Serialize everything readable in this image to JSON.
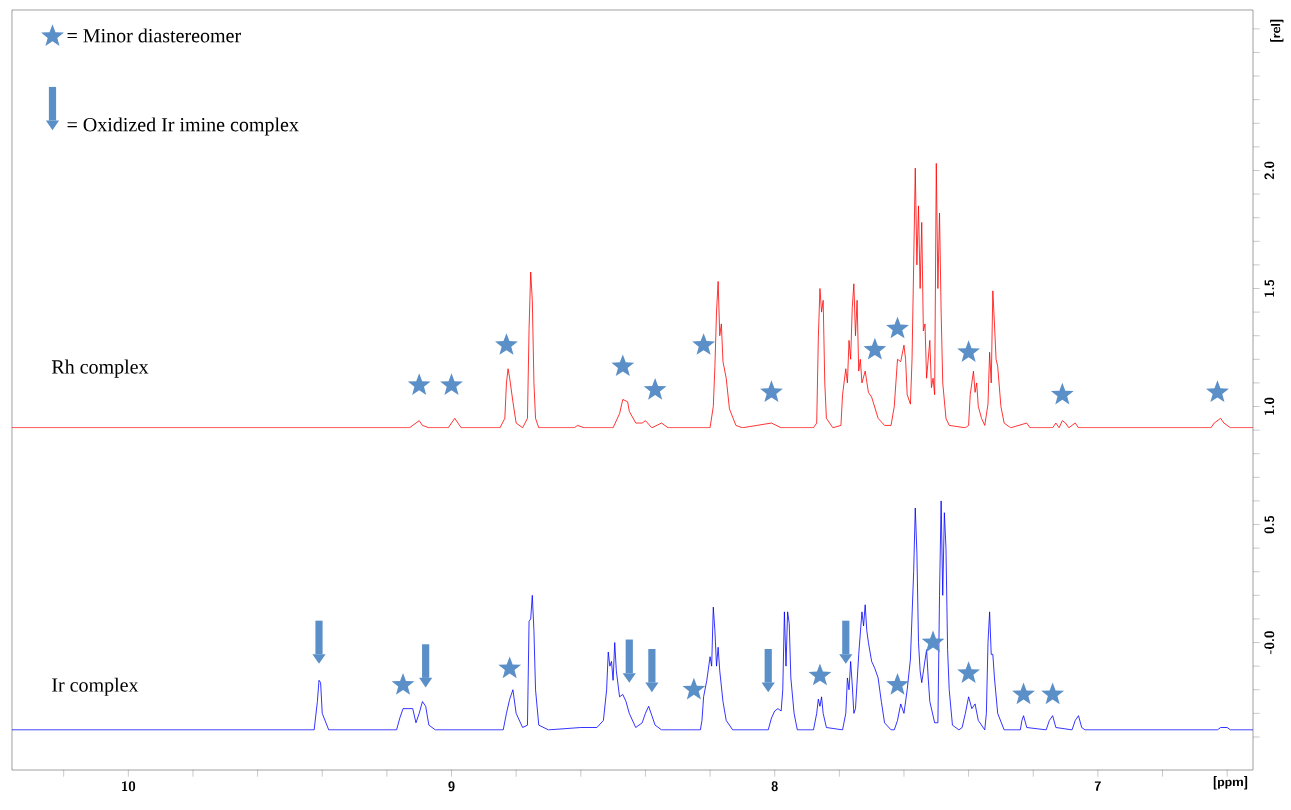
{
  "chart_data": {
    "type": "line",
    "xlabel": "[ppm]",
    "ylabel": "[rel]",
    "xlim": [
      10.36,
      6.52
    ],
    "ylim": [
      -0.54,
      2.68
    ],
    "xticks": [
      {
        "value": 10.2,
        "label": null
      },
      10,
      {
        "value": 9.8,
        "label": null
      },
      {
        "value": 9.6,
        "label": null
      },
      {
        "value": 9.4,
        "label": null
      },
      {
        "value": 9.2,
        "label": null
      },
      9,
      {
        "value": 8.8,
        "label": null
      },
      {
        "value": 8.6,
        "label": null
      },
      {
        "value": 8.4,
        "label": null
      },
      {
        "value": 8.2,
        "label": null
      },
      8,
      {
        "value": 7.8,
        "label": null
      },
      {
        "value": 7.6,
        "label": null
      },
      {
        "value": 7.4,
        "label": null
      },
      {
        "value": 7.2,
        "label": null
      },
      7,
      {
        "value": 6.8,
        "label": null
      },
      {
        "value": 6.6,
        "label": null
      }
    ],
    "yticks": [
      {
        "value": -0.4,
        "label": null
      },
      {
        "value": -0.3,
        "label": null
      },
      {
        "value": -0.2,
        "label": null
      },
      {
        "value": -0.1,
        "label": null
      },
      {
        "value": 0,
        "label": "-0.0"
      },
      {
        "value": 0.1,
        "label": null
      },
      {
        "value": 0.2,
        "label": null
      },
      {
        "value": 0.3,
        "label": null
      },
      {
        "value": 0.4,
        "label": null
      },
      {
        "value": 0.5,
        "label": "0.5"
      },
      {
        "value": 0.6,
        "label": null
      },
      {
        "value": 0.7,
        "label": null
      },
      {
        "value": 0.8,
        "label": null
      },
      {
        "value": 0.9,
        "label": null
      },
      {
        "value": 1,
        "label": "1.0"
      },
      {
        "value": 1.1,
        "label": null
      },
      {
        "value": 1.2,
        "label": null
      },
      {
        "value": 1.3,
        "label": null
      },
      {
        "value": 1.4,
        "label": null
      },
      {
        "value": 1.5,
        "label": "1.5"
      },
      {
        "value": 1.6,
        "label": null
      },
      {
        "value": 1.7,
        "label": null
      },
      {
        "value": 1.8,
        "label": null
      },
      {
        "value": 1.9,
        "label": null
      },
      {
        "value": 2,
        "label": "2.0"
      },
      {
        "value": 2.1,
        "label": null
      },
      {
        "value": 2.2,
        "label": null
      },
      {
        "value": 2.3,
        "label": null
      },
      {
        "value": 2.4,
        "label": null
      },
      {
        "value": 2.5,
        "label": null
      },
      {
        "value": 2.6,
        "label": null
      }
    ],
    "legend": "top left",
    "marker": "none",
    "line_style": "solid",
    "series": [
      {
        "name": "Rh complex",
        "color": "#ff0000",
        "x": [
          10.36,
          9.13,
          9.11,
          9.1,
          9.09,
          9.07,
          9.01,
          8.99,
          8.97,
          8.85,
          8.835,
          8.83,
          8.825,
          8.82,
          8.81,
          8.8,
          8.78,
          8.765,
          8.76,
          8.755,
          8.75,
          8.745,
          8.74,
          8.73,
          8.62,
          8.61,
          8.59,
          8.5,
          8.48,
          8.47,
          8.455,
          8.45,
          8.43,
          8.41,
          8.4,
          8.38,
          8.35,
          8.33,
          8.2,
          8.19,
          8.185,
          8.18,
          8.175,
          8.17,
          8.165,
          8.16,
          8.15,
          8.14,
          8.12,
          8.1,
          8.01,
          7.98,
          7.88,
          7.87,
          7.865,
          7.86,
          7.855,
          7.85,
          7.845,
          7.84,
          7.82,
          7.795,
          7.79,
          7.78,
          7.775,
          7.77,
          7.765,
          7.76,
          7.755,
          7.75,
          7.745,
          7.74,
          7.735,
          7.73,
          7.72,
          7.71,
          7.7,
          7.68,
          7.66,
          7.64,
          7.63,
          7.62,
          7.61,
          7.6,
          7.595,
          7.59,
          7.58,
          7.575,
          7.57,
          7.565,
          7.56,
          7.555,
          7.55,
          7.545,
          7.54,
          7.535,
          7.53,
          7.52,
          7.515,
          7.51,
          7.505,
          7.5,
          7.495,
          7.49,
          7.485,
          7.48,
          7.47,
          7.46,
          7.41,
          7.4,
          7.395,
          7.39,
          7.385,
          7.38,
          7.375,
          7.37,
          7.36,
          7.35,
          7.34,
          7.335,
          7.33,
          7.325,
          7.32,
          7.315,
          7.31,
          7.3,
          7.29,
          7.27,
          7.22,
          7.21,
          7.14,
          7.13,
          7.12,
          7.11,
          7.1,
          7.09,
          7.07,
          7.06,
          6.65,
          6.64,
          6.62,
          6.61,
          6.59,
          6.52
        ],
        "values": [
          0.91,
          0.91,
          0.93,
          0.94,
          0.92,
          0.91,
          0.91,
          0.95,
          0.91,
          0.91,
          0.95,
          1.1,
          1.16,
          1.12,
          1.02,
          0.93,
          0.91,
          0.95,
          1.33,
          1.57,
          1.45,
          1.1,
          0.95,
          0.91,
          0.91,
          0.92,
          0.91,
          0.91,
          0.97,
          1.03,
          1.02,
          0.98,
          0.93,
          0.93,
          0.94,
          0.91,
          0.93,
          0.91,
          0.91,
          1.0,
          1.17,
          1.4,
          1.53,
          1.3,
          1.35,
          1.19,
          1.12,
          0.99,
          0.92,
          0.91,
          0.93,
          0.91,
          0.91,
          0.93,
          1.29,
          1.5,
          1.4,
          1.45,
          1.1,
          0.95,
          0.91,
          0.92,
          1.05,
          1.16,
          1.1,
          1.28,
          1.2,
          1.42,
          1.52,
          1.3,
          1.45,
          1.15,
          1.2,
          1.1,
          1.15,
          1.06,
          1.04,
          0.95,
          0.92,
          0.92,
          1.0,
          1.2,
          1.19,
          1.26,
          1.2,
          1.05,
          1.01,
          1.2,
          1.6,
          2.01,
          1.6,
          1.85,
          1.5,
          1.78,
          1.32,
          1.35,
          1.12,
          1.28,
          1.08,
          1.12,
          1.05,
          2.03,
          1.5,
          1.82,
          1.4,
          1.1,
          0.95,
          0.92,
          0.91,
          0.92,
          1.05,
          1.1,
          1.15,
          1.06,
          1.1,
          1.0,
          0.95,
          0.92,
          1.01,
          1.23,
          1.1,
          1.49,
          1.35,
          1.2,
          1.17,
          1.0,
          0.93,
          0.91,
          0.93,
          0.91,
          0.91,
          0.93,
          0.91,
          0.94,
          0.93,
          0.91,
          0.93,
          0.91,
          0.91,
          0.93,
          0.95,
          0.93,
          0.91,
          0.91
        ]
      },
      {
        "name": "Ir complex",
        "color": "#0000ff",
        "x": [
          10.36,
          9.425,
          9.415,
          9.41,
          9.405,
          9.4,
          9.38,
          9.17,
          9.16,
          9.15,
          9.13,
          9.12,
          9.11,
          9.1,
          9.09,
          9.08,
          9.07,
          9.05,
          8.84,
          8.83,
          8.82,
          8.81,
          8.8,
          8.78,
          8.765,
          8.76,
          8.755,
          8.75,
          8.745,
          8.74,
          8.73,
          8.7,
          8.6,
          8.55,
          8.53,
          8.52,
          8.515,
          8.51,
          8.505,
          8.5,
          8.495,
          8.49,
          8.48,
          8.47,
          8.46,
          8.45,
          8.43,
          8.41,
          8.4,
          8.39,
          8.38,
          8.37,
          8.35,
          8.23,
          8.225,
          8.22,
          8.21,
          8.2,
          8.195,
          8.19,
          8.185,
          8.18,
          8.175,
          8.17,
          8.16,
          8.15,
          8.13,
          8.02,
          8.01,
          8.0,
          7.99,
          7.98,
          7.975,
          7.97,
          7.965,
          7.96,
          7.955,
          7.95,
          7.94,
          7.93,
          7.88,
          7.87,
          7.865,
          7.86,
          7.855,
          7.85,
          7.84,
          7.79,
          7.78,
          7.775,
          7.77,
          7.765,
          7.76,
          7.755,
          7.75,
          7.74,
          7.73,
          7.725,
          7.72,
          7.715,
          7.71,
          7.7,
          7.69,
          7.68,
          7.67,
          7.66,
          7.64,
          7.63,
          7.62,
          7.61,
          7.6,
          7.59,
          7.58,
          7.57,
          7.565,
          7.56,
          7.555,
          7.55,
          7.545,
          7.53,
          7.525,
          7.52,
          7.505,
          7.495,
          7.49,
          7.485,
          7.48,
          7.475,
          7.47,
          7.465,
          7.46,
          7.45,
          7.43,
          7.42,
          7.41,
          7.4,
          7.39,
          7.38,
          7.37,
          7.35,
          7.345,
          7.34,
          7.335,
          7.33,
          7.325,
          7.32,
          7.31,
          7.29,
          7.24,
          7.235,
          7.23,
          7.22,
          7.16,
          7.15,
          7.14,
          7.13,
          7.08,
          7.07,
          7.06,
          7.05,
          7.04,
          6.63,
          6.62,
          6.6,
          6.59,
          6.52
        ],
        "values": [
          -0.37,
          -0.37,
          -0.25,
          -0.16,
          -0.17,
          -0.3,
          -0.37,
          -0.37,
          -0.32,
          -0.28,
          -0.28,
          -0.28,
          -0.34,
          -0.3,
          -0.25,
          -0.27,
          -0.35,
          -0.37,
          -0.37,
          -0.3,
          -0.24,
          -0.2,
          -0.3,
          -0.36,
          -0.35,
          0.09,
          0.1,
          0.2,
          0.05,
          -0.2,
          -0.35,
          -0.37,
          -0.36,
          -0.36,
          -0.33,
          -0.2,
          -0.04,
          -0.1,
          -0.08,
          -0.16,
          0.0,
          -0.12,
          -0.23,
          -0.22,
          -0.25,
          -0.3,
          -0.36,
          -0.34,
          -0.3,
          -0.27,
          -0.31,
          -0.35,
          -0.37,
          -0.37,
          -0.33,
          -0.23,
          -0.16,
          -0.06,
          -0.1,
          0.15,
          0.05,
          -0.1,
          -0.02,
          -0.12,
          -0.25,
          -0.33,
          -0.37,
          -0.37,
          -0.32,
          -0.29,
          -0.28,
          -0.29,
          -0.2,
          0.13,
          -0.1,
          0.13,
          0.08,
          -0.15,
          -0.3,
          -0.37,
          -0.37,
          -0.3,
          -0.24,
          -0.27,
          -0.23,
          -0.3,
          -0.36,
          -0.37,
          -0.3,
          -0.15,
          -0.2,
          -0.08,
          -0.18,
          -0.3,
          -0.28,
          -0.05,
          0.13,
          0.07,
          0.16,
          0.05,
          0.0,
          -0.08,
          -0.11,
          -0.15,
          -0.25,
          -0.34,
          -0.37,
          -0.37,
          -0.33,
          -0.26,
          -0.3,
          -0.2,
          -0.07,
          0.3,
          0.57,
          0.38,
          0.0,
          -0.12,
          -0.17,
          -0.03,
          -0.15,
          -0.25,
          -0.34,
          -0.34,
          0.2,
          0.6,
          0.2,
          0.55,
          0.4,
          -0.03,
          -0.2,
          -0.35,
          -0.37,
          -0.36,
          -0.3,
          -0.23,
          -0.28,
          -0.26,
          -0.33,
          -0.37,
          -0.3,
          0.0,
          0.13,
          -0.05,
          -0.05,
          -0.15,
          -0.3,
          -0.37,
          -0.37,
          -0.33,
          -0.31,
          -0.36,
          -0.37,
          -0.33,
          -0.31,
          -0.36,
          -0.37,
          -0.33,
          -0.31,
          -0.36,
          -0.37,
          -0.37,
          -0.36,
          -0.36,
          -0.37,
          -0.37
        ]
      },
      {
        "name": "= Minor diastereomer",
        "type": "scatter",
        "marker": "star",
        "color": "#5b8fc7",
        "x": [
          9.1,
          9.0,
          8.83,
          8.47,
          8.37,
          8.22,
          8.01,
          7.69,
          7.62,
          7.4,
          7.11,
          6.63,
          9.15,
          8.82,
          8.25,
          7.86,
          7.62,
          7.51,
          7.4,
          7.23,
          7.14
        ],
        "values": [
          1.09,
          1.09,
          1.26,
          1.17,
          1.07,
          1.26,
          1.06,
          1.24,
          1.33,
          1.23,
          1.05,
          1.06,
          -0.18,
          -0.11,
          -0.2,
          -0.14,
          -0.18,
          0.0,
          -0.13,
          -0.22,
          -0.22
        ]
      },
      {
        "name": "= Oxidized Ir imine complex",
        "type": "scatter",
        "marker": "triangle",
        "color": "#5b8fc7",
        "x": [
          9.41,
          9.08,
          8.45,
          8.38,
          8.02,
          7.78
        ],
        "values": [
          -0.07,
          -0.17,
          -0.15,
          -0.19,
          -0.19,
          -0.07
        ]
      }
    ]
  }
}
